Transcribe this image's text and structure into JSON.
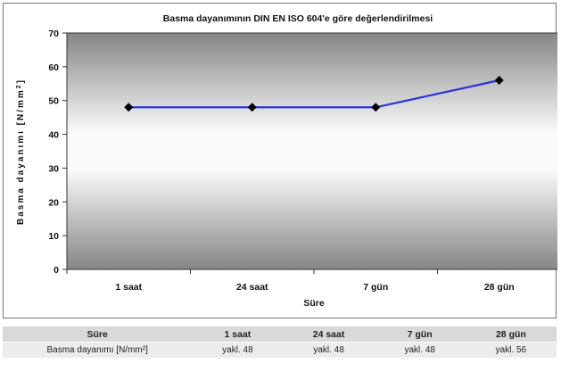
{
  "chart_data": {
    "type": "line",
    "title": "Basma dayanımının DIN EN ISO 604'e göre değerlendirilmesi",
    "xlabel": "Süre",
    "ylabel": "Basma dayanımı [N/mm²]",
    "categories": [
      "1 saat",
      "24 saat",
      "7 gün",
      "28 gün"
    ],
    "series": [
      {
        "values": [
          48,
          48,
          48,
          56
        ]
      }
    ],
    "ylim": [
      0,
      70
    ],
    "yticks": [
      0,
      10,
      20,
      30,
      40,
      50,
      60,
      70
    ],
    "grid": false,
    "colors": {
      "line": "#2a35d6",
      "marker": "#000000"
    }
  },
  "table": {
    "headers": [
      "Süre",
      "1 saat",
      "24 saat",
      "7 gün",
      "28 gün"
    ],
    "rows": [
      [
        "Basma dayanımı [N/mm²]",
        "yakl. 48",
        "yakl. 48",
        "yakl. 48",
        "yakl. 56"
      ]
    ]
  }
}
